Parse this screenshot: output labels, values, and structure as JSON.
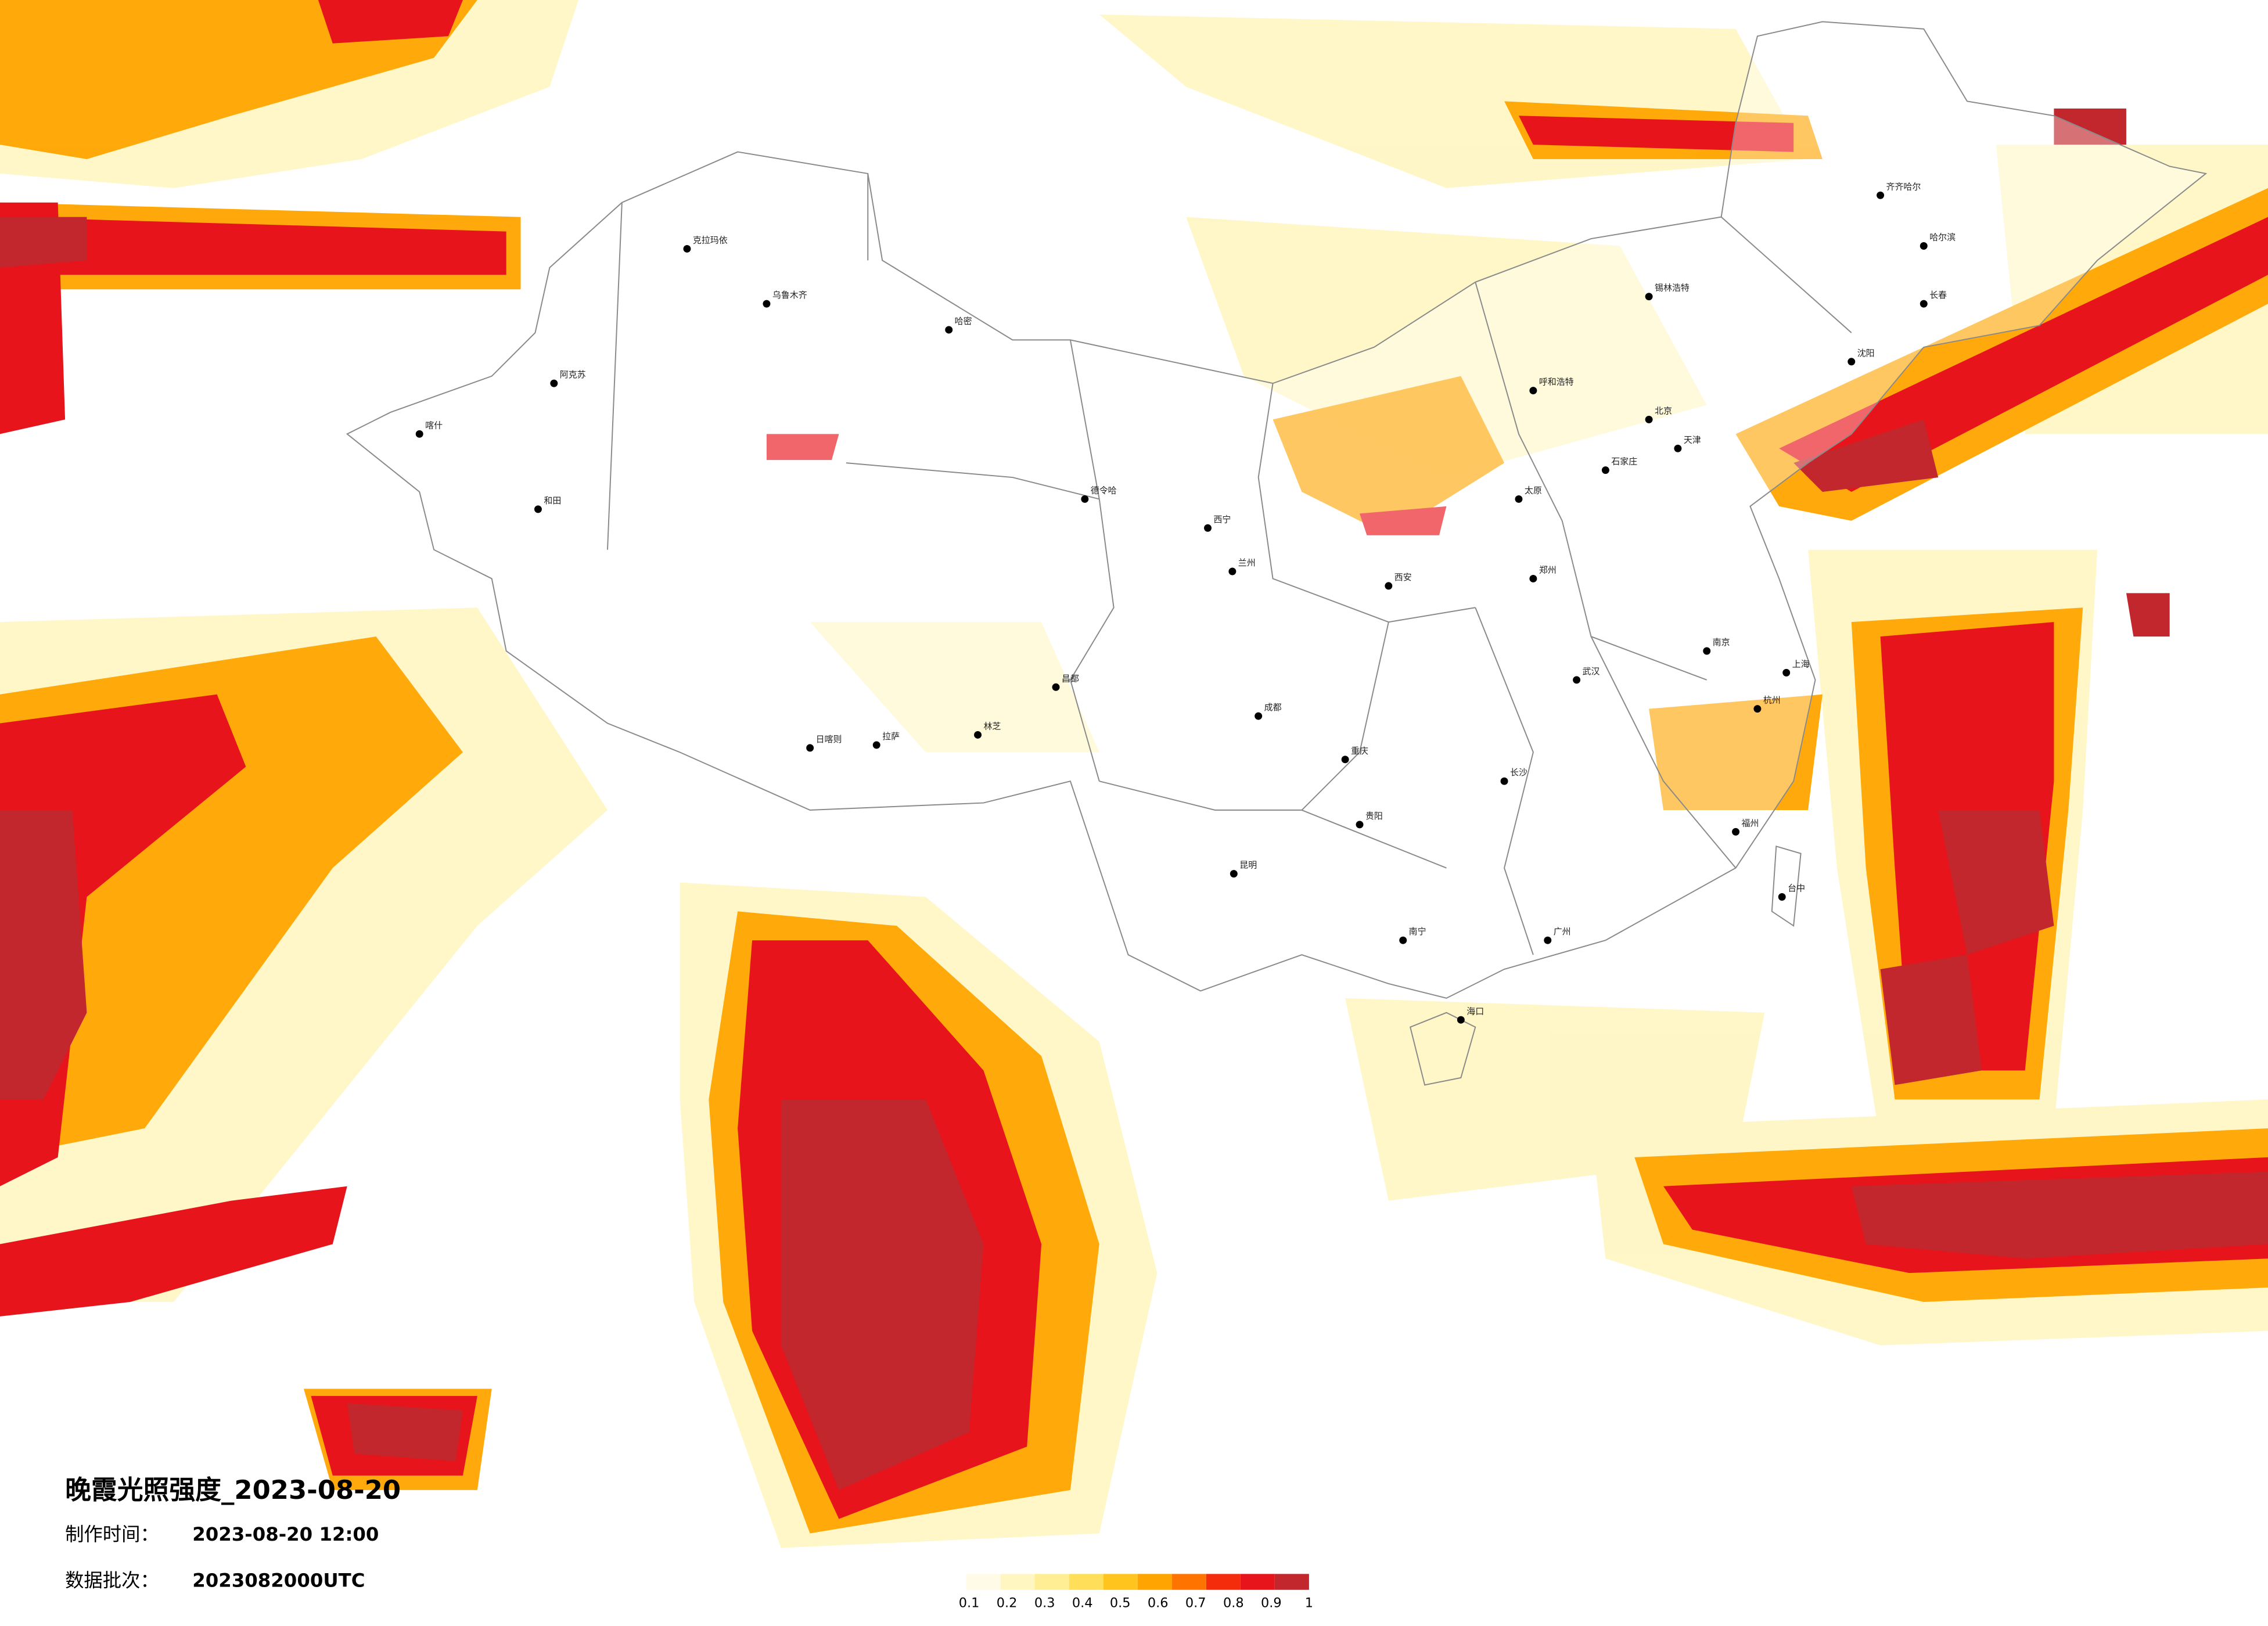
{
  "title": "晚霞光照强度_2023-08-20",
  "info": [
    {
      "label": "制作时间：",
      "value": "2023-08-20 12:00"
    },
    {
      "label": "数据批次：",
      "value": "2023082000UTC"
    }
  ],
  "legend": {
    "ticks": [
      0.1,
      0.2,
      0.3,
      0.4,
      0.5,
      0.6,
      0.7,
      0.8,
      0.9,
      1
    ],
    "colors": [
      "#fffbe6",
      "#fff6c2",
      "#ffee94",
      "#ffdf5a",
      "#ffc41e",
      "#ffa400",
      "#ff7300",
      "#f52c0c",
      "#e8141b",
      "#c1272d"
    ]
  },
  "cities": [
    "克拉玛依",
    "乌鲁木齐",
    "哈密",
    "阿克苏",
    "和田",
    "喀什",
    "德令哈",
    "日喀则",
    "拉萨",
    "林芝",
    "昌都",
    "西宁",
    "兰州",
    "成都",
    "重庆",
    "昆明",
    "贵阳",
    "南宁",
    "广州",
    "长沙",
    "武汉",
    "郑州",
    "北京",
    "天津",
    "石家庄",
    "太原",
    "西安",
    "上海",
    "南京",
    "杭州",
    "福州",
    "台中",
    "海口",
    "哈尔滨",
    "长春",
    "沈阳",
    "呼和浩特",
    "锡林浩特",
    "齐齐哈尔"
  ]
}
